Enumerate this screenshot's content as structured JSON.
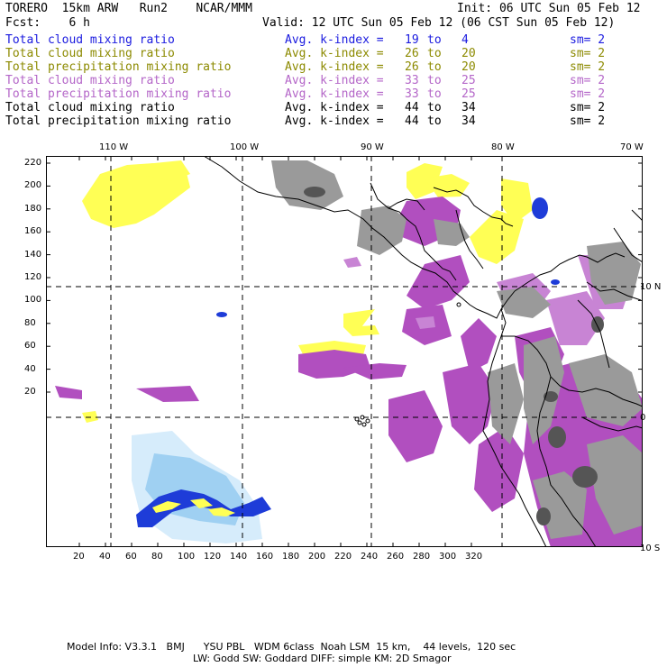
{
  "header": {
    "model": "TORERO  15km ARW   Run2    NCAR/MMM",
    "init": "Init: 06 UTC Sun 05 Feb 12",
    "fcst": "Fcst:    6 h",
    "valid": "Valid: 12 UTC Sun 05 Feb 12 (06 CST Sun 05 Feb 12)"
  },
  "legend": [
    {
      "name": "Total cloud mixing ratio",
      "kindex": "Avg. k-index =",
      "from": "19",
      "to_word": "to",
      "to": "4",
      "sm": "sm= 2",
      "color": "#1a1adf"
    },
    {
      "name": "Total cloud mixing ratio",
      "kindex": "Avg. k-index =",
      "from": "26",
      "to_word": "to",
      "to": "20",
      "sm": "sm= 2",
      "color": "#8c8a00"
    },
    {
      "name": "Total precipitation mixing ratio",
      "kindex": "Avg. k-index =",
      "from": "26",
      "to_word": "to",
      "to": "20",
      "sm": "sm= 2",
      "color": "#8c8a00"
    },
    {
      "name": "Total cloud mixing ratio",
      "kindex": "Avg. k-index =",
      "from": "33",
      "to_word": "to",
      "to": "25",
      "sm": "sm= 2",
      "color": "#b466c8"
    },
    {
      "name": "Total precipitation mixing ratio",
      "kindex": "Avg. k-index =",
      "from": "33",
      "to_word": "to",
      "to": "25",
      "sm": "sm= 2",
      "color": "#b466c8"
    },
    {
      "name": "Total cloud mixing ratio",
      "kindex": "Avg. k-index =",
      "from": "44",
      "to_word": "to",
      "to": "34",
      "sm": "sm= 2",
      "color": "#000000"
    },
    {
      "name": "Total precipitation mixing ratio",
      "kindex": "Avg. k-index =",
      "from": "44",
      "to_word": "to",
      "to": "34",
      "sm": "sm= 2",
      "color": "#000000"
    }
  ],
  "map": {
    "lon_labels": [
      "110 W",
      "100 W",
      "90 W",
      "80 W",
      "70 W"
    ],
    "lat_labels": [
      "10 N",
      "0",
      "10 S"
    ],
    "y_ticks": [
      "220",
      "200",
      "180",
      "160",
      "140",
      "120",
      "100",
      "80",
      "60",
      "40",
      "20"
    ],
    "x_ticks": [
      "20",
      "40",
      "60",
      "80",
      "100",
      "120",
      "140",
      "160",
      "180",
      "200",
      "220",
      "240",
      "260",
      "280",
      "300",
      "320"
    ],
    "colors": {
      "yellow": "#ffff55",
      "purple": "#b14fbf",
      "light_purple": "#c884d4",
      "gray": "#9a9a9a",
      "dark_gray": "#555555",
      "blue": "#1e3cd8",
      "light_blue": "#9fd0f2",
      "pale_blue": "#d6ecfb"
    }
  },
  "footer": {
    "line1": "Model Info: V3.3.1   BMJ      YSU PBL   WDM 6class  Noah LSM  15 km,    44 levels,  120 sec",
    "line2": "LW: Godd SW: Goddard DIFF: simple KM: 2D Smagor"
  }
}
